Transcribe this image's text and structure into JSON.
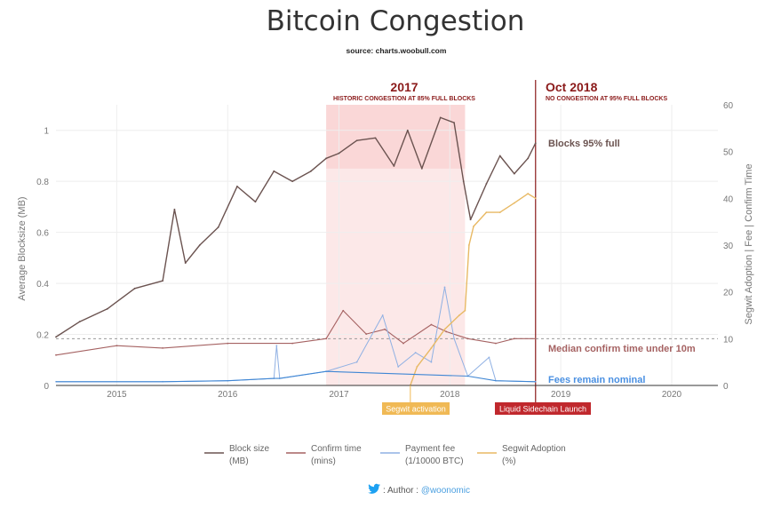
{
  "header": {
    "title": "Bitcoin Congestion",
    "source": "source: charts.woobull.com"
  },
  "axes": {
    "left_title": "Average Blocksize (MB)",
    "right_title": "Segwit Adoption | Fee | Confirm Time",
    "left_ticks": [
      "0",
      "0.2",
      "0.4",
      "0.6",
      "0.8",
      "1"
    ],
    "right_ticks": [
      "0",
      "10",
      "20",
      "30",
      "40",
      "50",
      "60"
    ],
    "x_ticks": [
      "2015",
      "2016",
      "2017",
      "2018",
      "2019",
      "2020"
    ]
  },
  "annotations": {
    "ann_2017_year": "2017",
    "ann_2017_text": "HISTORIC CONGESTION AT 85% FULL BLOCKS",
    "ann_2018_year": "Oct 2018",
    "ann_2018_text": "NO CONGESTION AT 95% FULL BLOCKS",
    "label_blocks": "Blocks 95% full",
    "label_confirm": "Median confirm time under 10m",
    "label_fees": "Fees remain nominal",
    "badge_segwit": "Segwit activation",
    "badge_liquid": "Liquid Sidechain Launch"
  },
  "legend": [
    {
      "line1": "Block size",
      "line2": "(MB)",
      "color": "#6b5350"
    },
    {
      "line1": "Confirm time",
      "line2": "(mins)",
      "color": "#a56262"
    },
    {
      "line1": "Payment fee",
      "line2": "(1/10000 BTC)",
      "color": "#8fb0e3"
    },
    {
      "line1": "Segwit Adoption",
      "line2": "(%)",
      "color": "#e8b964"
    }
  ],
  "author": {
    "prefix": ": Author : ",
    "handle": "@woonomic"
  },
  "colors": {
    "block_size": "#6b5350",
    "confirm_time": "#a56262",
    "payment_fee": "#8fb0e3",
    "segwit": "#e8b964",
    "fee_base": "#3f86d4",
    "highlight": "#fbe0e0",
    "annotation": "#8b1a1a",
    "segwit_badge": "#f0b955",
    "liquid_badge": "#c0282d",
    "twitter_icon": "#1da1f2"
  },
  "chart_data": {
    "type": "line",
    "title": "Bitcoin Congestion",
    "x_range": [
      "2014-06-15",
      "2020-06-01"
    ],
    "ylim_left": [
      0,
      1.1
    ],
    "ylim_right": [
      0,
      60
    ],
    "grid": true,
    "legend_position": "bottom",
    "highlight_band": {
      "from": "2016-11-20",
      "to": "2018-02-20"
    },
    "series": [
      {
        "name": "Block size (MB)",
        "axis": "left",
        "points": [
          [
            "2014-06-15",
            0.19
          ],
          [
            "2014-09-01",
            0.25
          ],
          [
            "2014-12-01",
            0.3
          ],
          [
            "2015-03-01",
            0.38
          ],
          [
            "2015-06-01",
            0.41
          ],
          [
            "2015-07-10",
            0.69
          ],
          [
            "2015-08-15",
            0.48
          ],
          [
            "2015-10-01",
            0.55
          ],
          [
            "2015-12-01",
            0.62
          ],
          [
            "2016-02-01",
            0.78
          ],
          [
            "2016-04-01",
            0.72
          ],
          [
            "2016-06-01",
            0.84
          ],
          [
            "2016-08-01",
            0.8
          ],
          [
            "2016-10-01",
            0.84
          ],
          [
            "2016-11-20",
            0.89
          ],
          [
            "2017-01-01",
            0.91
          ],
          [
            "2017-03-01",
            0.96
          ],
          [
            "2017-05-01",
            0.97
          ],
          [
            "2017-07-01",
            0.86
          ],
          [
            "2017-08-15",
            1.0
          ],
          [
            "2017-10-01",
            0.85
          ],
          [
            "2017-12-01",
            1.05
          ],
          [
            "2018-01-15",
            1.03
          ],
          [
            "2018-02-15",
            0.8
          ],
          [
            "2018-03-10",
            0.65
          ],
          [
            "2018-05-01",
            0.79
          ],
          [
            "2018-06-15",
            0.9
          ],
          [
            "2018-08-01",
            0.83
          ],
          [
            "2018-09-15",
            0.89
          ],
          [
            "2018-10-10",
            0.95
          ]
        ]
      },
      {
        "name": "Confirm time (mins)",
        "axis": "right",
        "points": [
          [
            "2014-06-15",
            6.5
          ],
          [
            "2015-01-01",
            8.5
          ],
          [
            "2015-06-01",
            8.0
          ],
          [
            "2016-01-01",
            9.0
          ],
          [
            "2016-08-01",
            9.0
          ],
          [
            "2016-11-20",
            10.0
          ],
          [
            "2017-01-15",
            16.0
          ],
          [
            "2017-04-01",
            11.0
          ],
          [
            "2017-06-01",
            12.0
          ],
          [
            "2017-08-01",
            9.0
          ],
          [
            "2017-11-01",
            13.0
          ],
          [
            "2017-12-20",
            11.5
          ],
          [
            "2018-03-01",
            10.0
          ],
          [
            "2018-06-01",
            9.0
          ],
          [
            "2018-08-01",
            10.0
          ],
          [
            "2018-10-10",
            10.0
          ]
        ]
      },
      {
        "name": "Payment fee (1/10000 BTC)",
        "axis": "right",
        "points": [
          [
            "2014-06-15",
            0.8
          ],
          [
            "2015-06-01",
            0.8
          ],
          [
            "2016-01-01",
            1.0
          ],
          [
            "2016-06-01",
            1.5
          ],
          [
            "2016-06-10",
            8.5
          ],
          [
            "2016-06-20",
            1.5
          ],
          [
            "2016-11-20",
            3.0
          ],
          [
            "2017-03-01",
            5.0
          ],
          [
            "2017-05-25",
            15.0
          ],
          [
            "2017-07-15",
            4.0
          ],
          [
            "2017-09-10",
            7.0
          ],
          [
            "2017-11-01",
            5.0
          ],
          [
            "2017-12-15",
            21.0
          ],
          [
            "2018-01-15",
            10.0
          ],
          [
            "2018-03-01",
            2.0
          ],
          [
            "2018-05-10",
            6.0
          ],
          [
            "2018-06-01",
            1.0
          ],
          [
            "2018-10-10",
            0.8
          ]
        ]
      },
      {
        "name": "Segwit Adoption (%)",
        "axis": "right",
        "points": [
          [
            "2017-08-24",
            0.0
          ],
          [
            "2017-09-15",
            4.0
          ],
          [
            "2017-11-01",
            8.0
          ],
          [
            "2017-12-15",
            12.0
          ],
          [
            "2018-02-01",
            15.0
          ],
          [
            "2018-02-20",
            16.0
          ],
          [
            "2018-03-05",
            30.0
          ],
          [
            "2018-03-20",
            34.0
          ],
          [
            "2018-05-01",
            37.0
          ],
          [
            "2018-06-15",
            37.0
          ],
          [
            "2018-08-01",
            39.0
          ],
          [
            "2018-09-15",
            41.0
          ],
          [
            "2018-10-10",
            40.0
          ]
        ]
      }
    ],
    "reference_line": {
      "axis": "right",
      "value": 10,
      "label": "Median confirm time under 10m"
    },
    "events": [
      {
        "date": "2017-08-24",
        "label": "Segwit activation"
      },
      {
        "date": "2018-10-10",
        "label": "Liquid Sidechain Launch"
      }
    ]
  }
}
